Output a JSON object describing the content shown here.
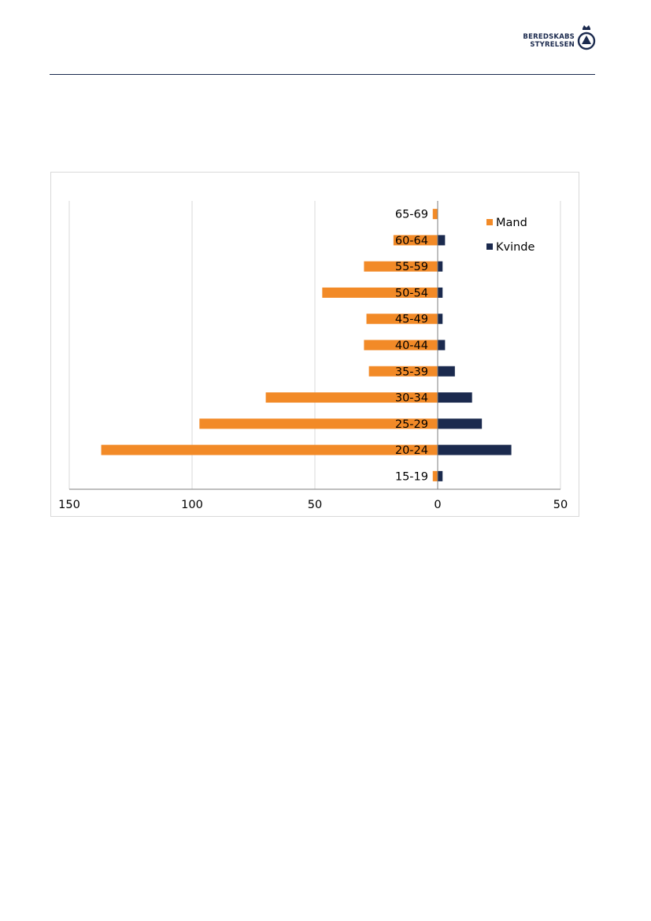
{
  "header": {
    "logo_text_line1": "BEREDSKABS",
    "logo_text_line2": "STYRELSEN",
    "brand_color": "#1b2a4e"
  },
  "chart_data": {
    "type": "bar",
    "orientation": "horizontal",
    "categories": [
      "15-19",
      "20-24",
      "25-29",
      "30-34",
      "35-39",
      "40-44",
      "45-49",
      "50-54",
      "55-59",
      "60-64",
      "65-69"
    ],
    "series": [
      {
        "name": "Mand",
        "color": "#f28a27",
        "values": [
          -2,
          -137,
          -97,
          -70,
          -28,
          -30,
          -29,
          -47,
          -30,
          -18,
          -2
        ]
      },
      {
        "name": "Kvinde",
        "color": "#1b2a4e",
        "values": [
          2,
          30,
          18,
          14,
          7,
          3,
          2,
          2,
          2,
          3,
          0
        ]
      }
    ],
    "x_ticks": [
      "150",
      "100",
      "50",
      "0",
      "50"
    ],
    "xlim": [
      -150,
      50
    ],
    "grid": true,
    "legend": "top-right"
  }
}
